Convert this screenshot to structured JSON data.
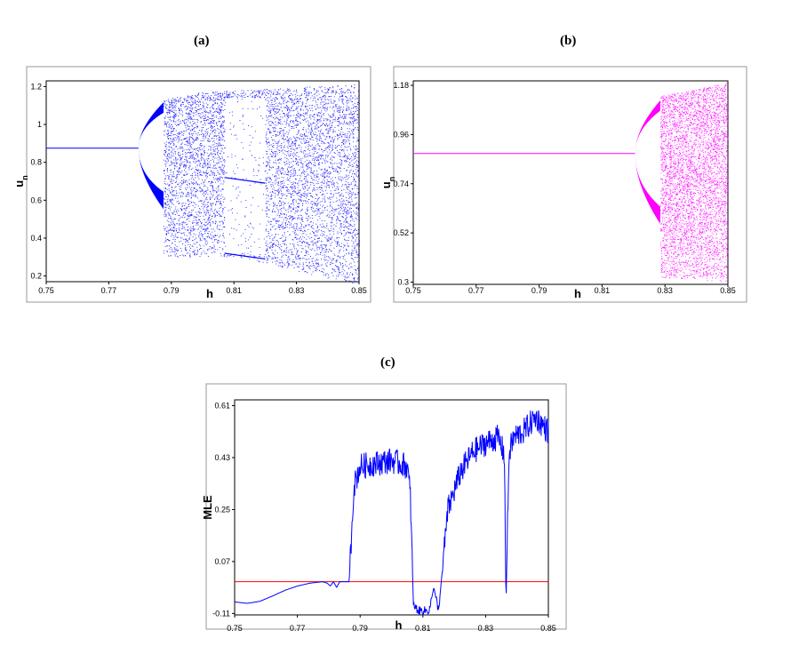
{
  "panels": {
    "a": {
      "label": "(a)"
    },
    "b": {
      "label": "(b)"
    },
    "c": {
      "label": "(c)"
    }
  },
  "colors": {
    "a": "#0000ff",
    "b": "#ff00ff",
    "c": "#0000ff",
    "zero_line": "#ff0000",
    "frame": "#000000"
  },
  "chart_data": [
    {
      "type": "scatter",
      "panel": "(a)",
      "title": "",
      "xlabel": "h",
      "ylabel": "u_n",
      "xlim": [
        0.75,
        0.85
      ],
      "ylim": [
        0.17,
        1.23
      ],
      "x_ticks": [
        "0.75",
        "0.77",
        "0.79",
        "0.81",
        "0.83",
        "0.85"
      ],
      "y_ticks": [
        "0.2",
        "0.4",
        "0.6",
        "0.8",
        "1",
        "1.2"
      ],
      "series": [
        {
          "color": "#0000ff",
          "fixed_point": {
            "h_range": [
              0.75,
              0.7795
            ],
            "u": 0.875
          },
          "period2_branches": {
            "h_range": [
              0.7795,
              0.7875
            ],
            "upper_end": 1.09,
            "lower_end": 0.6
          },
          "chaos_onset_h": 0.7875,
          "chaos_upper_envelope": [
            [
              0.7875,
              1.13
            ],
            [
              0.8,
              1.17
            ],
            [
              0.85,
              1.21
            ]
          ],
          "chaos_lower_envelope": [
            [
              0.7875,
              0.3
            ],
            [
              0.81,
              0.3
            ],
            [
              0.85,
              0.15
            ]
          ],
          "periodic_window": {
            "h_range": [
              0.807,
              0.82
            ],
            "points_u": [
              0.7,
              0.3
            ]
          }
        }
      ]
    },
    {
      "type": "scatter",
      "panel": "(b)",
      "title": "",
      "xlabel": "h",
      "ylabel": "u_n",
      "xlim": [
        0.75,
        0.85
      ],
      "ylim": [
        0.29,
        1.2
      ],
      "x_ticks": [
        "0.75",
        "0.77",
        "0.79",
        "0.81",
        "0.83",
        "0.85"
      ],
      "y_ticks": [
        "0.3",
        "0.52",
        "0.74",
        "0.96",
        "1.18"
      ],
      "series": [
        {
          "color": "#ff00ff",
          "fixed_point": {
            "h_range": [
              0.75,
              0.8205
            ],
            "u": 0.875
          },
          "period2_branches": {
            "h_range": [
              0.8205,
              0.8285
            ],
            "upper_end": 1.09,
            "lower_end": 0.6
          },
          "chaos_onset_h": 0.8285,
          "chaos_upper_envelope": [
            [
              0.8285,
              1.13
            ],
            [
              0.85,
              1.19
            ]
          ],
          "chaos_lower_envelope": [
            [
              0.8285,
              0.32
            ],
            [
              0.85,
              0.3
            ]
          ]
        }
      ]
    },
    {
      "type": "line",
      "panel": "(c)",
      "title": "",
      "xlabel": "h",
      "ylabel": "MLE",
      "xlim": [
        0.75,
        0.85
      ],
      "ylim": [
        -0.115,
        0.63
      ],
      "x_ticks": [
        "0.75",
        "0.77",
        "0.79",
        "0.81",
        "0.83",
        "0.85"
      ],
      "y_ticks": [
        "-0.11",
        "0.07",
        "0.25",
        "0.43",
        "0.61"
      ],
      "zero_line": 0.0,
      "series": [
        {
          "color": "#0000ff",
          "x": [
            0.75,
            0.754,
            0.758,
            0.762,
            0.766,
            0.77,
            0.774,
            0.778,
            0.7795,
            0.7805,
            0.7815,
            0.7825,
            0.7835,
            0.7845,
            0.7855,
            0.7865,
            0.788,
            0.79,
            0.795,
            0.8,
            0.805,
            0.806,
            0.807,
            0.8085,
            0.81,
            0.812,
            0.8135,
            0.815,
            0.818,
            0.822,
            0.826,
            0.83,
            0.834,
            0.836,
            0.8365,
            0.837,
            0.8375,
            0.839,
            0.842,
            0.846,
            0.85
          ],
          "y": [
            -0.07,
            -0.075,
            -0.068,
            -0.05,
            -0.03,
            -0.015,
            -0.005,
            0.0,
            -0.005,
            -0.015,
            0.0,
            -0.02,
            0.0,
            0.0,
            0.0,
            0.0,
            0.33,
            0.4,
            0.41,
            0.42,
            0.4,
            0.3,
            -0.08,
            -0.1,
            -0.1,
            -0.1,
            -0.02,
            -0.1,
            0.25,
            0.38,
            0.45,
            0.48,
            0.5,
            0.44,
            -0.08,
            0.2,
            0.45,
            0.5,
            0.52,
            0.57,
            0.52
          ]
        }
      ]
    }
  ]
}
